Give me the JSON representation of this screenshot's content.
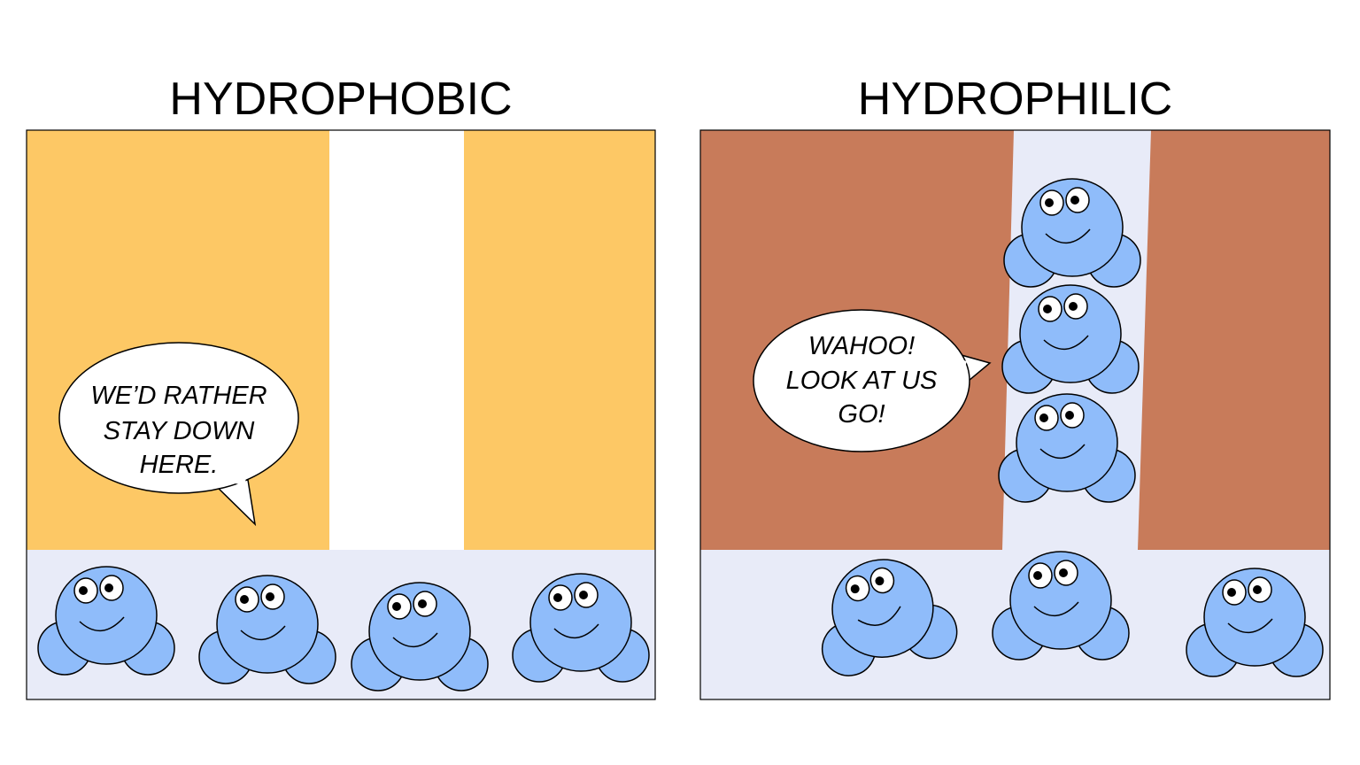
{
  "panels": [
    {
      "title": "HYDROPHOBIC",
      "bubble_lines": [
        "WE’D RATHER",
        "STAY DOWN",
        "HERE."
      ],
      "wall_color": "#fdc865"
    },
    {
      "title": "HYDROPHILIC",
      "bubble_lines": [
        "WAHOO!",
        "LOOK AT US",
        "GO!"
      ],
      "wall_color": "#c87b5a"
    }
  ],
  "colors": {
    "water": "#e8ebf8",
    "molecule_fill": "#8fbcfa",
    "outline": "#000000"
  },
  "molecule_counts": {
    "hydrophobic_bottom": 4,
    "hydrophilic_column": 3,
    "hydrophilic_bottom": 3
  }
}
